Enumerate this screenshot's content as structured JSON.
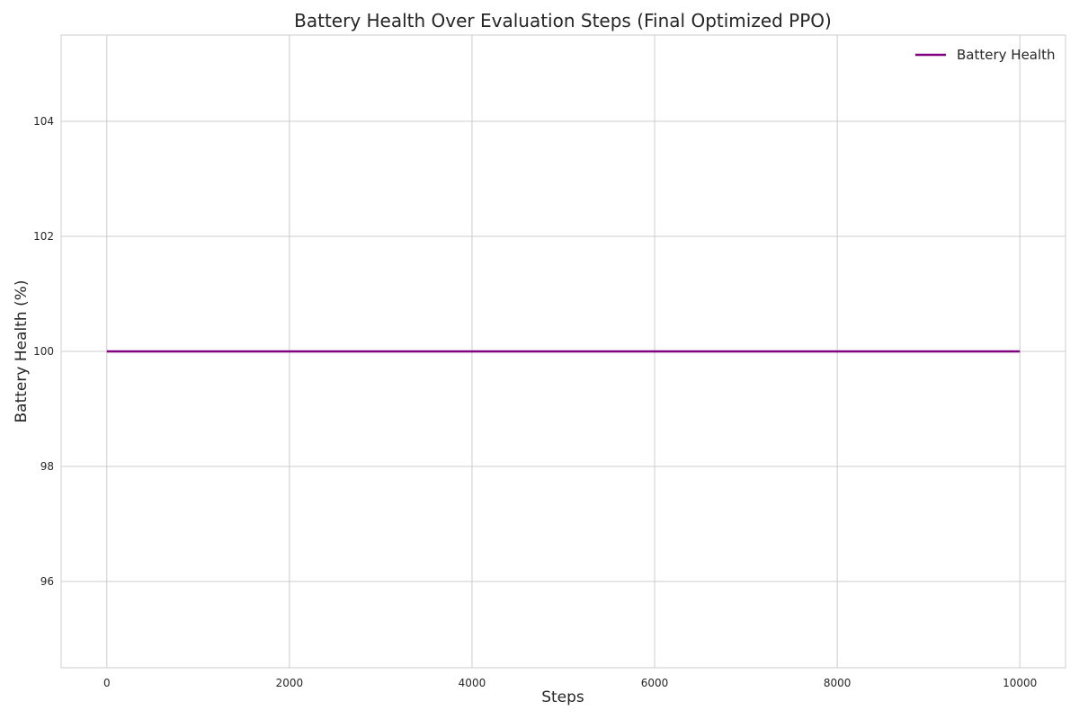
{
  "chart_data": {
    "type": "line",
    "title": "Battery Health Over Evaluation Steps (Final Optimized PPO)",
    "xlabel": "Steps",
    "ylabel": "Battery Health (%)",
    "xlim": [
      -500,
      10500
    ],
    "ylim": [
      94.5,
      105.5
    ],
    "xticks": [
      0,
      2000,
      4000,
      6000,
      8000,
      10000
    ],
    "yticks": [
      96,
      98,
      100,
      102,
      104
    ],
    "grid": true,
    "legend_position": "top-right",
    "series": [
      {
        "name": "Battery Health",
        "color": "#800080",
        "x": [
          0,
          10000
        ],
        "y": [
          100,
          100
        ]
      }
    ]
  }
}
